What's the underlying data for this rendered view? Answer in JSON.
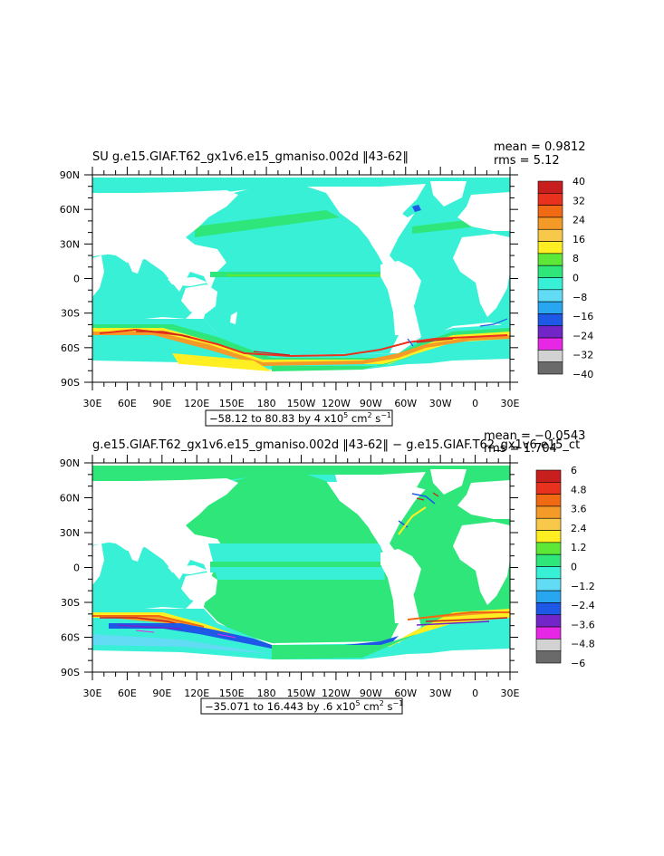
{
  "chart_data": [
    {
      "type": "heatmap",
      "title": "SU g.e15.GIAF.T62_gx1v6.e15_gmaniso.002d ‖43-62‖",
      "stats": {
        "mean": "mean = 0.9812",
        "rms": "rms = 5.12"
      },
      "ylabels": [
        "90N",
        "60N",
        "30N",
        "0",
        "30S",
        "60S",
        "90S"
      ],
      "xlabels": [
        "30E",
        "60E",
        "90E",
        "120E",
        "150E",
        "180",
        "150W",
        "120W",
        "90W",
        "60W",
        "30W",
        "0",
        "30E"
      ],
      "xlim": [
        30,
        390
      ],
      "ylim": [
        -90,
        90
      ],
      "range_label": {
        "prefix": "−58.12 to 80.83 by 4 x10",
        "exp": "5",
        "unit": " cm",
        "unit_exp": "2",
        "tail": " s",
        "tail_exp": "−1"
      },
      "levels": [
        "40",
        "32",
        "24",
        "16",
        "8",
        "0",
        "−8",
        "−16",
        "−24",
        "−32",
        "−40"
      ],
      "level_values": [
        40,
        32,
        24,
        16,
        8,
        0,
        -8,
        -16,
        -24,
        -32,
        -40
      ],
      "colorbar_colors": [
        "#c81e1e",
        "#e8321e",
        "#f06a14",
        "#f49a28",
        "#f8c84a",
        "#ffee22",
        "#5de838",
        "#2ee67a",
        "#38f0d6",
        "#62dcf4",
        "#28a6f0",
        "#1e58e6",
        "#7226c8",
        "#e628e6",
        "#d2d2d2",
        "#6a6a6a"
      ],
      "ocean_color": "#38f0d6"
    },
    {
      "type": "heatmap",
      "title": "g.e15.GIAF.T62_gx1v6.e15_gmaniso.002d ‖43-62‖ − g.e15.GIAF.T62_gx1v6.e15_ct",
      "stats": {
        "mean": "mean = −0.0543",
        "rms": "rms = 1.704"
      },
      "ylabels": [
        "90N",
        "60N",
        "30N",
        "0",
        "30S",
        "60S",
        "90S"
      ],
      "xlabels": [
        "30E",
        "60E",
        "90E",
        "120E",
        "150E",
        "180",
        "150W",
        "120W",
        "90W",
        "60W",
        "30W",
        "0",
        "30E"
      ],
      "xlim": [
        30,
        390
      ],
      "ylim": [
        -90,
        90
      ],
      "range_label": {
        "prefix": "−35.071 to 16.443 by .6 x10",
        "exp": "5",
        "unit": " cm",
        "unit_exp": "2",
        "tail": " s",
        "tail_exp": "−1"
      },
      "levels": [
        "6",
        "4.8",
        "3.6",
        "2.4",
        "1.2",
        "0",
        "−1.2",
        "−2.4",
        "−3.6",
        "−4.8",
        "−6"
      ],
      "level_values": [
        6,
        4.8,
        3.6,
        2.4,
        1.2,
        0,
        -1.2,
        -2.4,
        -3.6,
        -4.8,
        -6
      ],
      "colorbar_colors": [
        "#c81e1e",
        "#e8321e",
        "#f06a14",
        "#f49a28",
        "#f8c84a",
        "#ffee22",
        "#5de838",
        "#2ee67a",
        "#38f0d6",
        "#62dcf4",
        "#28a6f0",
        "#1e58e6",
        "#7226c8",
        "#e628e6",
        "#d2d2d2",
        "#6a6a6a"
      ],
      "ocean_color": "#38f0d6"
    }
  ]
}
